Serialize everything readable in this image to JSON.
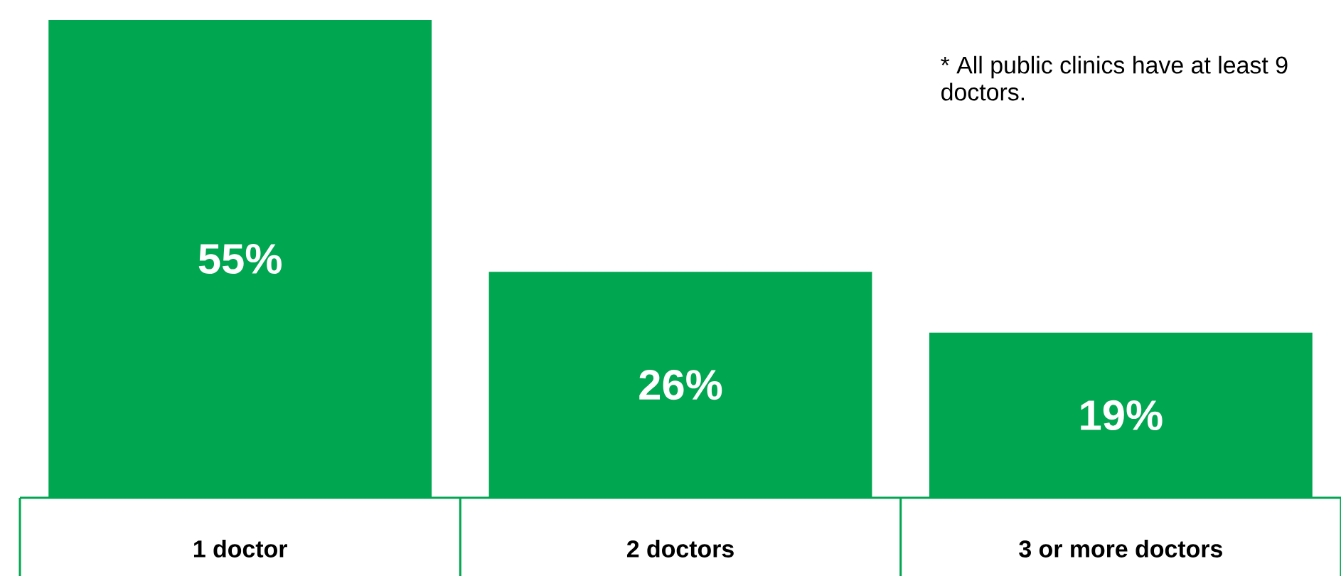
{
  "chart_data": {
    "type": "bar",
    "categories": [
      "1 doctor",
      "2 doctors",
      "3 or more doctors"
    ],
    "values": [
      55,
      26,
      19
    ],
    "value_labels": [
      "55%",
      "26%",
      "19%"
    ],
    "color": "#00a650",
    "annotations": [
      "* All public clinics have at least 9 doctors."
    ]
  }
}
